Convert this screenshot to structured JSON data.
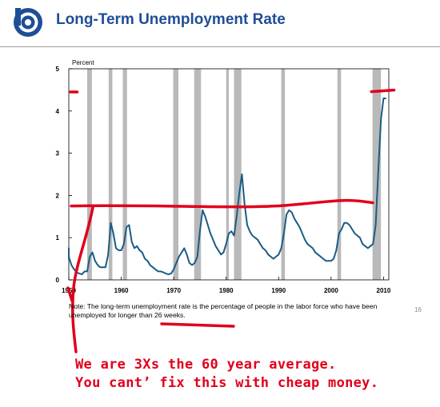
{
  "header": {
    "title": "Long-Term Unemployment Rate",
    "brand_color": "#1f4e96"
  },
  "chart_data": {
    "type": "line",
    "ylabel": "Percent",
    "xlim": [
      1950,
      2011
    ],
    "ylim": [
      0,
      5
    ],
    "x_ticks": [
      1950,
      1960,
      1970,
      1980,
      1990,
      2000,
      2010
    ],
    "x_tick_labels": [
      "1950",
      "1960",
      "1970",
      "1980",
      "1990",
      "2000",
      "2010"
    ],
    "y_ticks": [
      0,
      1,
      2,
      3,
      4,
      5
    ],
    "line_color": "#1a5c86",
    "recession_color": "#b9b9b9",
    "recessions": [
      [
        1953.5,
        1954.4
      ],
      [
        1957.6,
        1958.3
      ],
      [
        1960.3,
        1961.1
      ],
      [
        1969.9,
        1970.9
      ],
      [
        1973.9,
        1975.2
      ],
      [
        1980.0,
        1980.5
      ],
      [
        1981.5,
        1982.9
      ],
      [
        1990.5,
        1991.2
      ],
      [
        2001.2,
        2001.9
      ],
      [
        2007.9,
        2009.5
      ]
    ],
    "series": [
      {
        "x": [
          1948.0,
          1948.5,
          1949.0,
          1949.5,
          1950.0,
          1950.5,
          1951.0,
          1951.5,
          1952.0,
          1952.5,
          1953.0,
          1953.5,
          1954.0,
          1954.5,
          1955.0,
          1955.5,
          1956.0,
          1956.5,
          1957.0,
          1957.5,
          1958.0,
          1958.5,
          1959.0,
          1959.5,
          1960.0,
          1960.5,
          1961.0,
          1961.5,
          1962.0,
          1962.5,
          1963.0,
          1963.5,
          1964.0,
          1964.5,
          1965.0,
          1965.5,
          1966.0,
          1966.5,
          1967.0,
          1967.5,
          1968.0,
          1968.5,
          1969.0,
          1969.5,
          1970.0,
          1970.5,
          1971.0,
          1971.5,
          1972.0,
          1972.5,
          1973.0,
          1973.5,
          1974.0,
          1974.5,
          1975.0,
          1975.5,
          1976.0,
          1976.5,
          1977.0,
          1977.5,
          1978.0,
          1978.5,
          1979.0,
          1979.5,
          1980.0,
          1980.5,
          1981.0,
          1981.5,
          1982.0,
          1982.5,
          1983.0,
          1983.5,
          1984.0,
          1984.5,
          1985.0,
          1985.5,
          1986.0,
          1986.5,
          1987.0,
          1987.5,
          1988.0,
          1988.5,
          1989.0,
          1989.5,
          1990.0,
          1990.5,
          1991.0,
          1991.5,
          1992.0,
          1992.5,
          1993.0,
          1993.5,
          1994.0,
          1994.5,
          1995.0,
          1995.5,
          1996.0,
          1996.5,
          1997.0,
          1997.5,
          1998.0,
          1998.5,
          1999.0,
          1999.5,
          2000.0,
          2000.5,
          2001.0,
          2001.5,
          2002.0,
          2002.5,
          2003.0,
          2003.5,
          2004.0,
          2004.5,
          2005.0,
          2005.5,
          2006.0,
          2006.5,
          2007.0,
          2007.5,
          2008.0,
          2008.5,
          2009.0,
          2009.5,
          2010.0,
          2010.5
        ],
        "y": [
          0.65,
          0.7,
          0.5,
          0.75,
          0.55,
          0.35,
          0.25,
          0.18,
          0.15,
          0.13,
          0.2,
          0.2,
          0.55,
          0.65,
          0.45,
          0.35,
          0.3,
          0.3,
          0.3,
          0.6,
          1.35,
          1.1,
          0.75,
          0.7,
          0.7,
          0.85,
          1.25,
          1.3,
          0.9,
          0.75,
          0.8,
          0.7,
          0.65,
          0.5,
          0.45,
          0.35,
          0.3,
          0.25,
          0.2,
          0.2,
          0.18,
          0.15,
          0.13,
          0.15,
          0.25,
          0.4,
          0.55,
          0.65,
          0.75,
          0.6,
          0.4,
          0.35,
          0.4,
          0.55,
          1.15,
          1.65,
          1.5,
          1.3,
          1.1,
          0.95,
          0.8,
          0.7,
          0.6,
          0.65,
          0.85,
          1.1,
          1.15,
          1.05,
          1.5,
          2.05,
          2.5,
          1.8,
          1.3,
          1.15,
          1.05,
          1.0,
          0.95,
          0.85,
          0.75,
          0.7,
          0.6,
          0.55,
          0.5,
          0.55,
          0.6,
          0.75,
          1.1,
          1.55,
          1.65,
          1.6,
          1.45,
          1.35,
          1.25,
          1.1,
          0.95,
          0.85,
          0.8,
          0.75,
          0.65,
          0.6,
          0.55,
          0.5,
          0.45,
          0.45,
          0.45,
          0.5,
          0.7,
          1.1,
          1.2,
          1.35,
          1.35,
          1.3,
          1.2,
          1.1,
          1.05,
          1.0,
          0.85,
          0.8,
          0.75,
          0.8,
          0.85,
          1.3,
          2.6,
          3.8,
          4.3,
          4.3
        ]
      }
    ]
  },
  "annotations": {
    "hand_color": "#e0001b",
    "average_level": 1.75,
    "current_level": 4.4,
    "early_level": 4.45,
    "text": [
      "We are 3Xs the 60 year average.",
      "You cant’ fix this with cheap money."
    ]
  },
  "note": "Note: The long-term unemployment rate is the percentage of people in the labor force who have been unemployed for longer than 26 weeks.",
  "page_number": "16"
}
